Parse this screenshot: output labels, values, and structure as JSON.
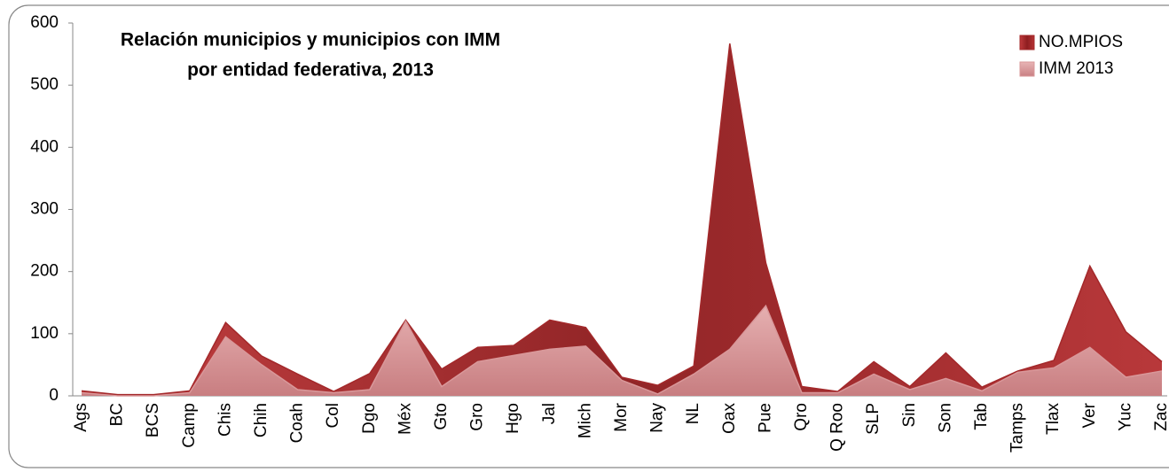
{
  "chart_data": {
    "type": "area",
    "title": [
      "Relación municipios y municipios con IMM",
      "por entidad federativa, 2013"
    ],
    "categories": [
      "Ags",
      "BC",
      "BCS",
      "Camp",
      "Chis",
      "Chih",
      "Coah",
      "Col",
      "Dgo",
      "Méx",
      "Gto",
      "Gro",
      "Hgo",
      "Jal",
      "Mich",
      "Mor",
      "Nay",
      "NL",
      "Oax",
      "Pue",
      "Qro",
      "Q Roo",
      "SLP",
      "Sin",
      "Son",
      "Tab",
      "Tamps",
      "Tlax",
      "Ver",
      "Yuc",
      "Zac"
    ],
    "series": [
      {
        "name": "NO.MPIOS",
        "color": "#a3282a",
        "values": [
          8,
          2,
          2,
          8,
          118,
          64,
          35,
          7,
          36,
          122,
          43,
          78,
          81,
          122,
          110,
          30,
          17,
          48,
          567,
          214,
          15,
          7,
          55,
          15,
          69,
          14,
          40,
          57,
          209,
          103,
          55
        ]
      },
      {
        "name": "IMM  2013",
        "color": "#d9989a",
        "values": [
          5,
          0,
          0,
          5,
          95,
          50,
          10,
          5,
          10,
          120,
          15,
          55,
          65,
          75,
          80,
          25,
          3,
          35,
          75,
          145,
          5,
          5,
          35,
          10,
          28,
          8,
          38,
          45,
          78,
          30,
          40
        ]
      }
    ],
    "ylim": [
      0,
      600
    ],
    "yticks": [
      0,
      100,
      200,
      300,
      400,
      500,
      600
    ],
    "grid": false,
    "legend": "top-right"
  }
}
